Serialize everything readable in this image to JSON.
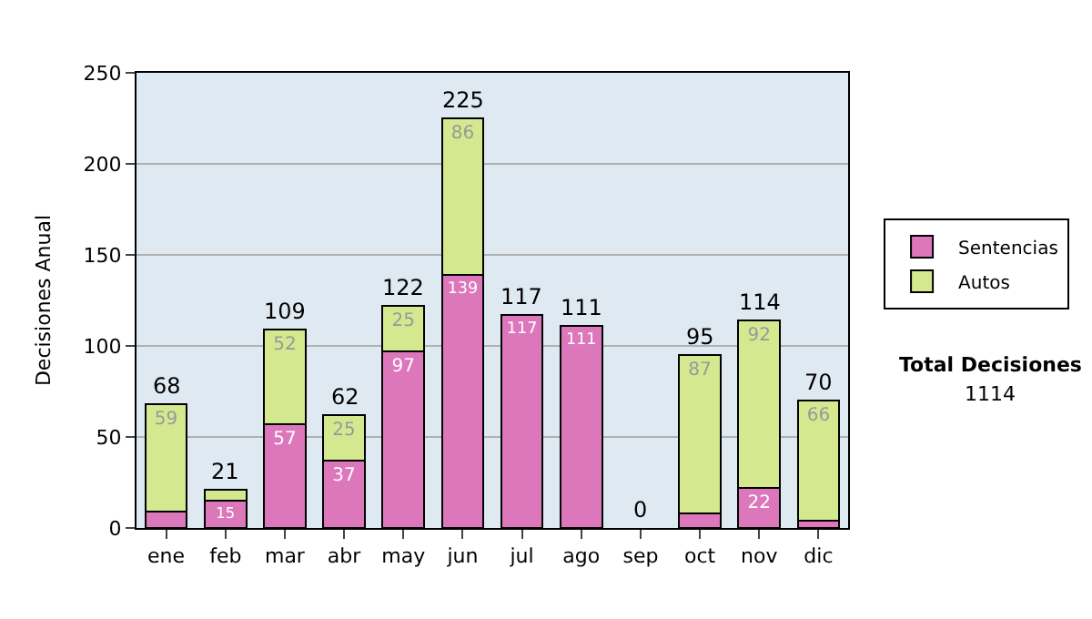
{
  "chart_data": {
    "type": "bar",
    "stacked": true,
    "ylabel": "Decisiones Anual",
    "categories": [
      "ene",
      "feb",
      "mar",
      "abr",
      "may",
      "jun",
      "jul",
      "ago",
      "sep",
      "oct",
      "nov",
      "dic"
    ],
    "series": [
      {
        "name": "Sentencias",
        "color": "#dd77bb",
        "values": [
          9,
          15,
          57,
          37,
          97,
          139,
          117,
          111,
          0,
          8,
          22,
          4
        ],
        "value_labels": [
          null,
          "15",
          "57",
          "37",
          "97",
          "139",
          "117",
          "111",
          null,
          null,
          "22",
          null
        ]
      },
      {
        "name": "Autos",
        "color": "#d4e890",
        "values": [
          59,
          6,
          52,
          25,
          25,
          86,
          0,
          0,
          0,
          87,
          92,
          66
        ],
        "value_labels": [
          "59",
          null,
          "52",
          "25",
          "25",
          "86",
          null,
          null,
          null,
          "87",
          "92",
          "66"
        ]
      }
    ],
    "totals": [
      "68",
      "21",
      "109",
      "62",
      "122",
      "225",
      "117",
      "111",
      "0",
      "95",
      "114",
      "70"
    ],
    "ylim": [
      0,
      250
    ],
    "yticks": [
      0,
      50,
      100,
      150,
      200,
      250
    ],
    "grid": "y",
    "legend": "right",
    "annotations": [
      "Total Decisiones",
      "1114"
    ]
  }
}
